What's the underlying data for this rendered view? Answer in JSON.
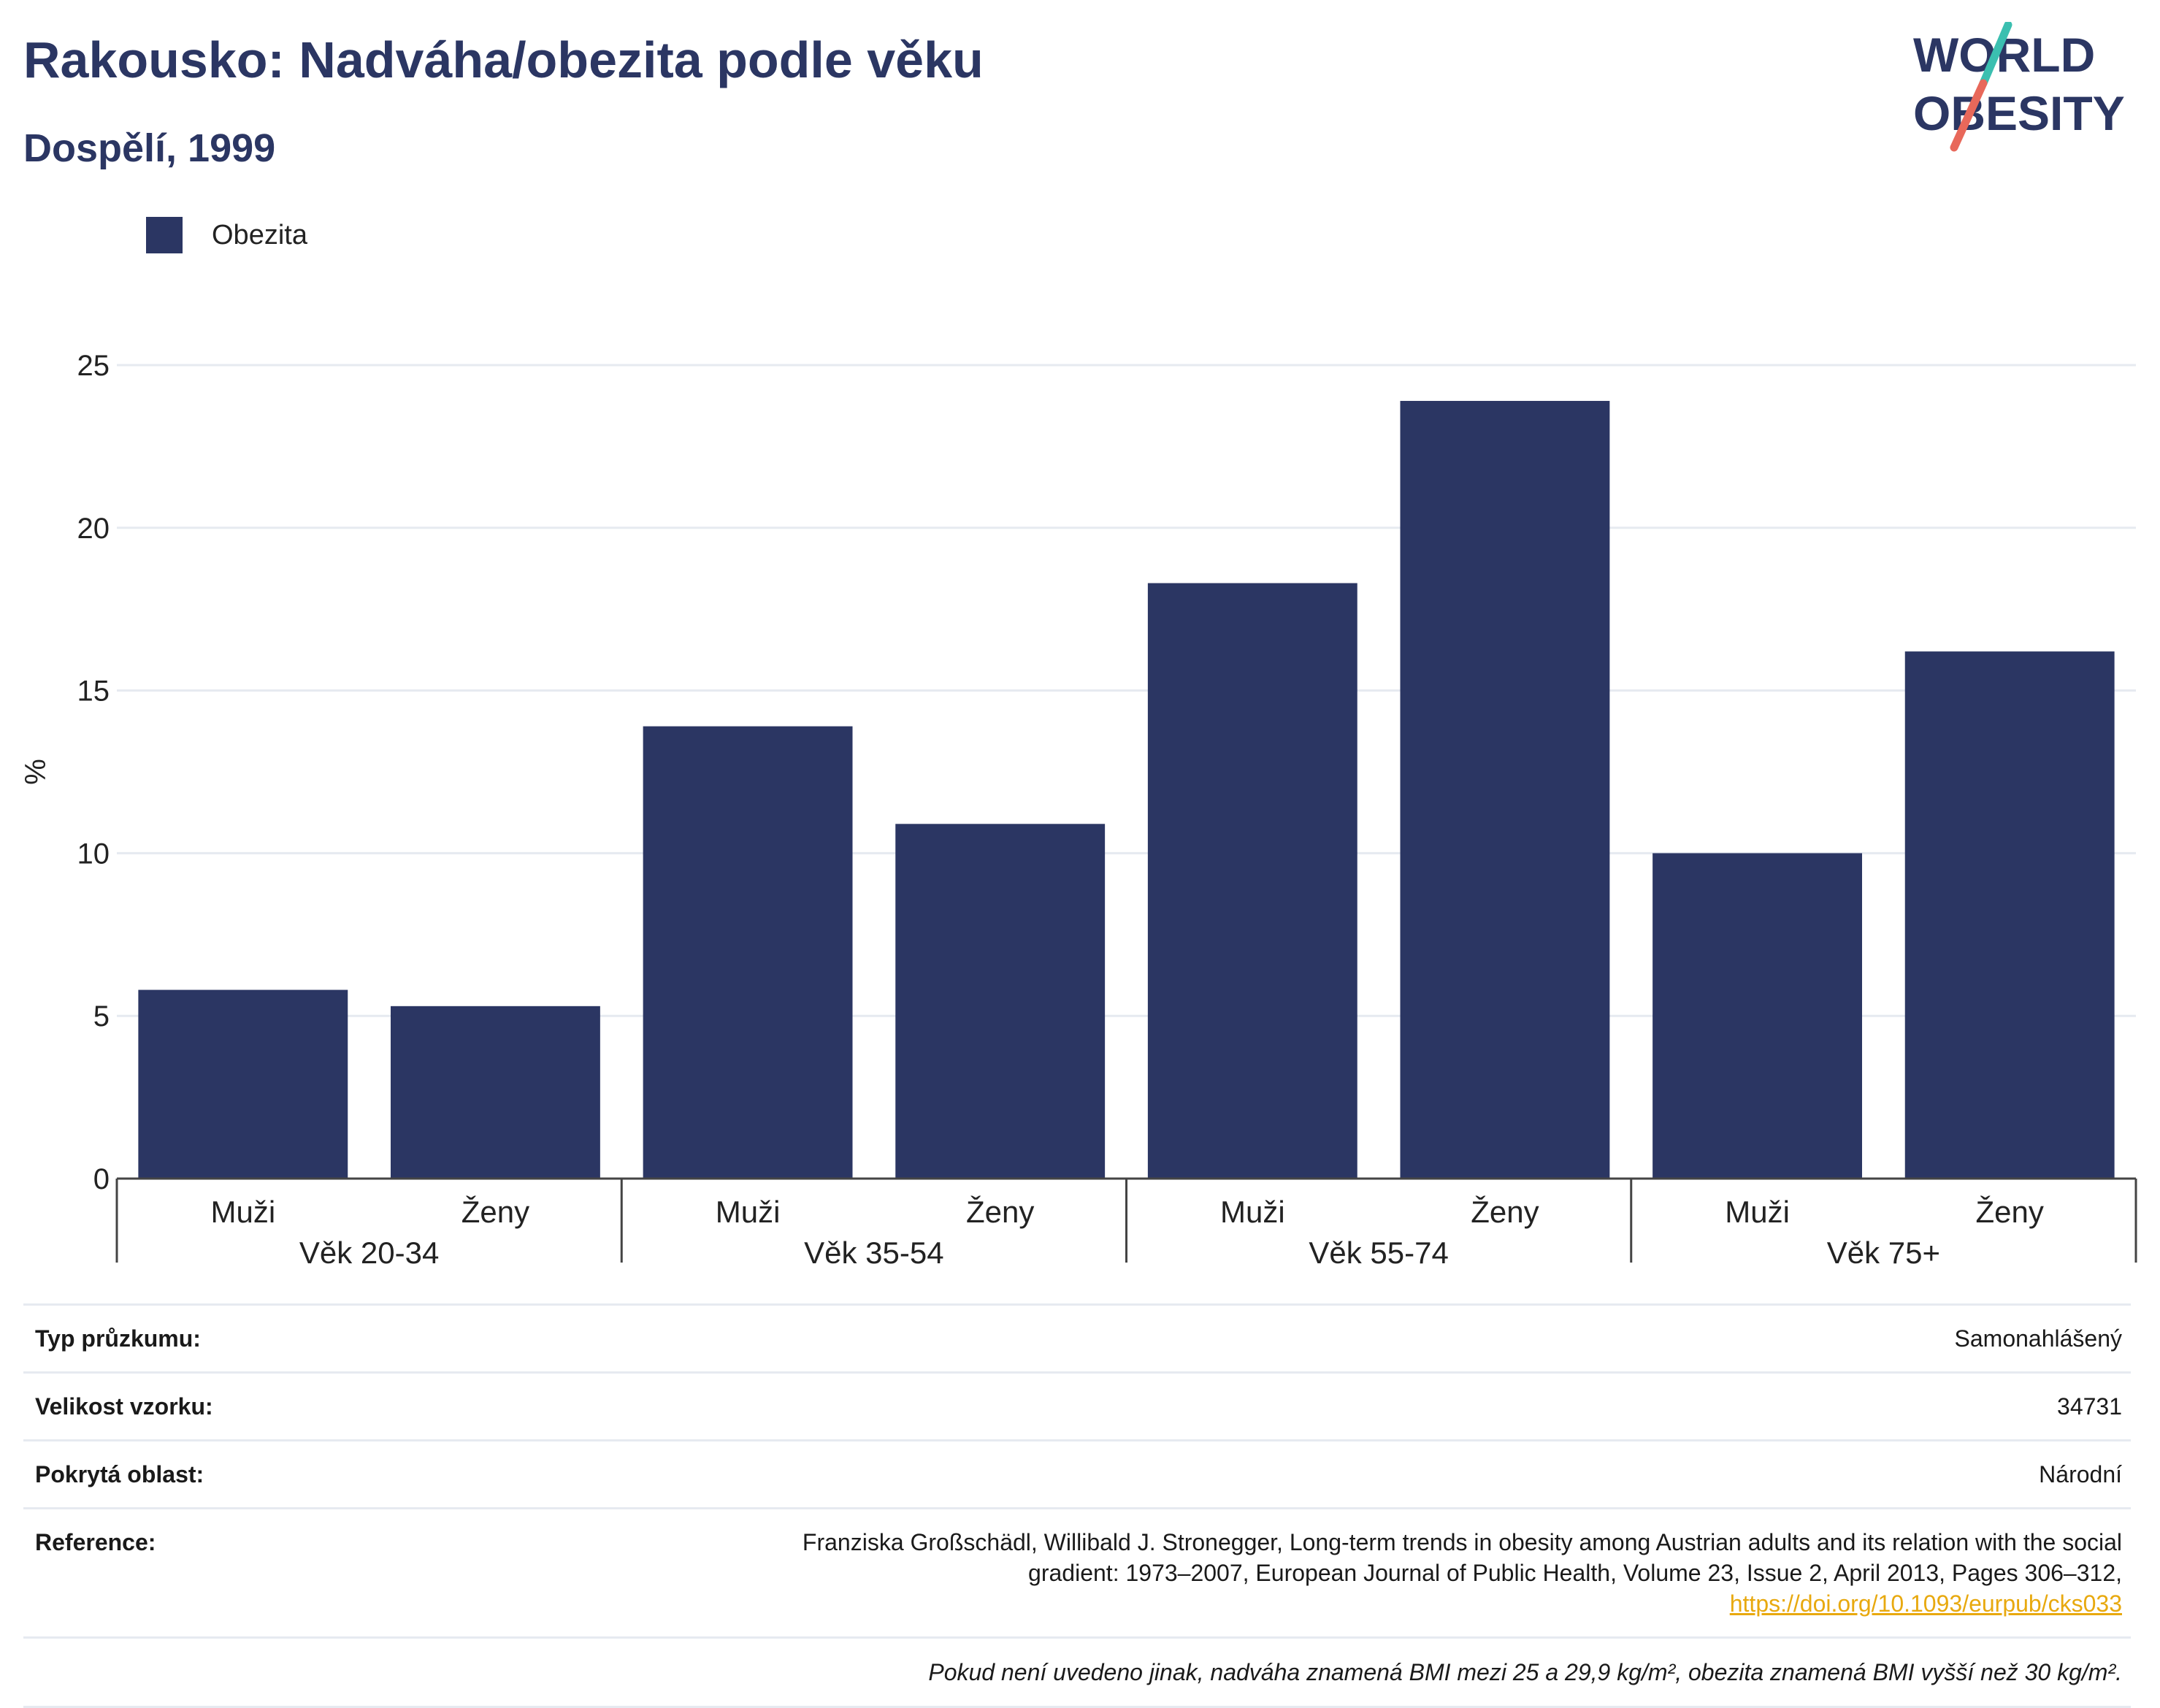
{
  "title": "Rakousko: Nadváha/obezita podle věku",
  "subtitle": "Dospělí, 1999",
  "logo": {
    "line1": "WORLD",
    "line2": "OBESITY"
  },
  "colors": {
    "bar": "#2b3663",
    "title": "#2b3663",
    "grid": "#e6eaf0",
    "link": "#e8a90f",
    "logo_teal": "#3bbfb0",
    "logo_red": "#e8685a"
  },
  "chart_data": {
    "type": "bar",
    "title": "Rakousko: Nadváha/obezita podle věku",
    "subtitle": "Dospělí, 1999",
    "ylabel": "%",
    "ylim": [
      0,
      25
    ],
    "yticks": [
      0,
      5,
      10,
      15,
      20,
      25
    ],
    "grid": true,
    "legend": "top-left",
    "groups": [
      {
        "label": "Věk 20-34",
        "categories": [
          "Muži",
          "Ženy"
        ]
      },
      {
        "label": "Věk 35-54",
        "categories": [
          "Muži",
          "Ženy"
        ]
      },
      {
        "label": "Věk 55-74",
        "categories": [
          "Muži",
          "Ženy"
        ]
      },
      {
        "label": "Věk 75+",
        "categories": [
          "Muži",
          "Ženy"
        ]
      }
    ],
    "series": [
      {
        "name": "Obezita",
        "values": [
          5.8,
          5.3,
          13.9,
          10.9,
          18.3,
          23.9,
          10.0,
          16.2
        ]
      }
    ]
  },
  "info": [
    {
      "label": "Typ průzkumu:",
      "value": "Samonahlášený"
    },
    {
      "label": "Velikost vzorku:",
      "value": "34731"
    },
    {
      "label": "Pokrytá oblast:",
      "value": "Národní"
    }
  ],
  "reference": {
    "label": "Reference:",
    "line1": "Franziska Großschädl, Willibald J. Stronegger, Long-term trends in obesity among Austrian adults and its relation with the social",
    "line2": "gradient: 1973–2007, European Journal of Public Health, Volume 23, Issue 2, April 2013, Pages 306–312,",
    "link": "https://doi.org/10.1093/eurpub/cks033"
  },
  "note": "Pokud není uvedeno jinak, nadváha znamená BMI mezi 25 a 29,9 kg/m², obezita znamená BMI vyšší než 30 kg/m²."
}
